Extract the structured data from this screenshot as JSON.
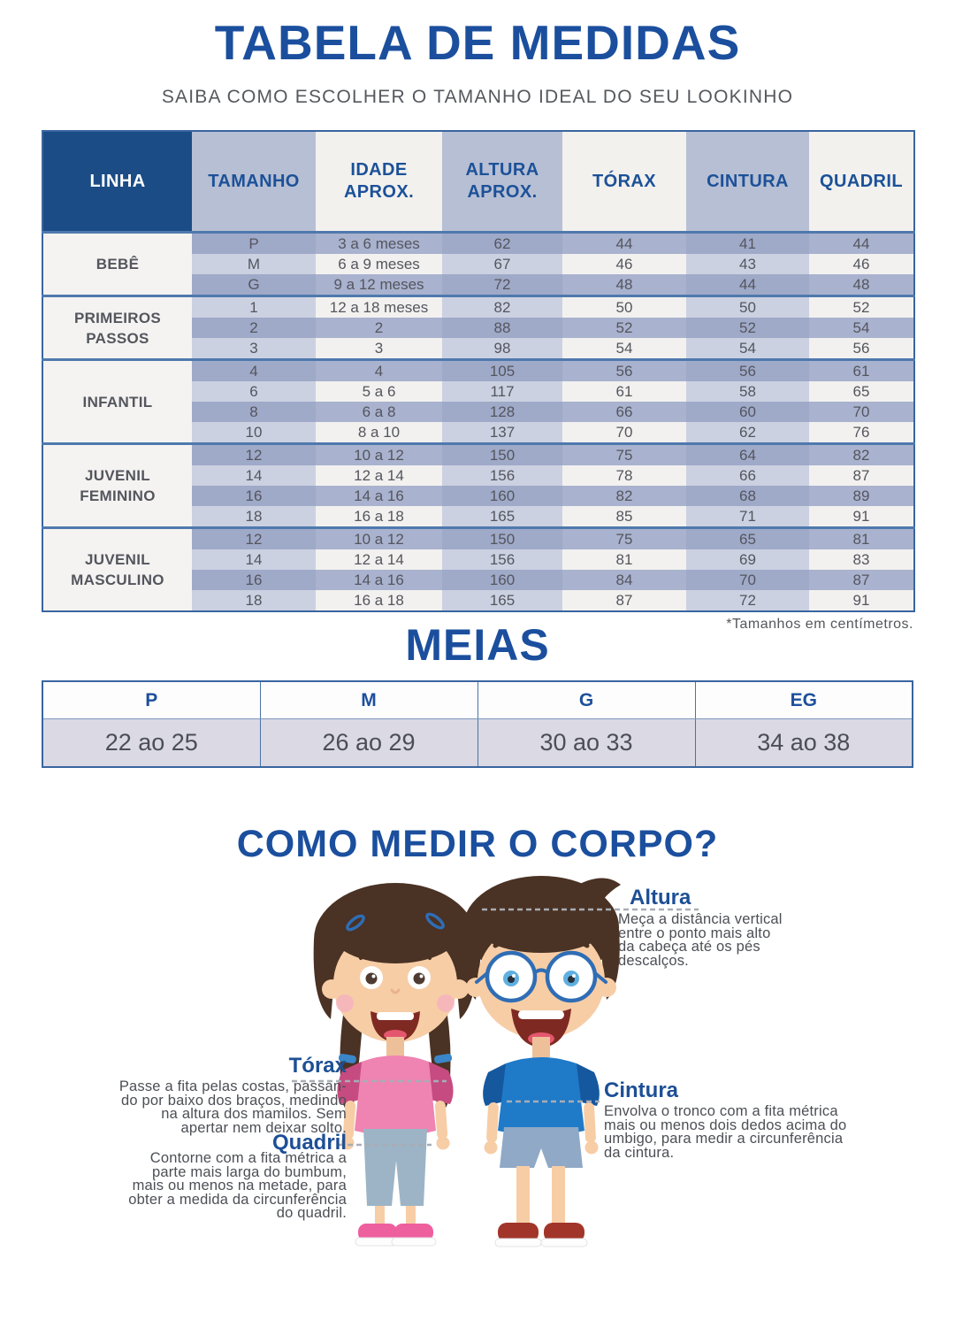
{
  "page": {
    "title": "TABELA DE MEDIDAS",
    "subtitle": "SAIBA COMO ESCOLHER O TAMANHO IDEAL DO SEU LOOKINHO"
  },
  "colors": {
    "title_blue": "#1b4f9e",
    "header_navy": "#1b4c85",
    "header_text_blue": "#1c5198",
    "row_dark": "#a9b2ce",
    "row_light": "#f2f1ef",
    "girl_shirt_pink": "#ef83b2",
    "boy_shirt_blue": "#1f7ac8"
  },
  "size_table": {
    "headers": [
      "LINHA",
      "TAMANHO",
      "IDADE\nAPROX.",
      "ALTURA\nAPROX.",
      "TÓRAX",
      "CINTURA",
      "QUADRIL"
    ],
    "groups": [
      {
        "linha": "BEBÊ",
        "rows": [
          [
            "P",
            "3 a 6 meses",
            "62",
            "44",
            "41",
            "44"
          ],
          [
            "M",
            "6 a 9 meses",
            "67",
            "46",
            "43",
            "46"
          ],
          [
            "G",
            "9 a 12 meses",
            "72",
            "48",
            "44",
            "48"
          ]
        ]
      },
      {
        "linha": "PRIMEIROS\nPASSOS",
        "rows": [
          [
            "1",
            "12 a 18 meses",
            "82",
            "50",
            "50",
            "52"
          ],
          [
            "2",
            "2",
            "88",
            "52",
            "52",
            "54"
          ],
          [
            "3",
            "3",
            "98",
            "54",
            "54",
            "56"
          ]
        ]
      },
      {
        "linha": "INFANTIL",
        "rows": [
          [
            "4",
            "4",
            "105",
            "56",
            "56",
            "61"
          ],
          [
            "6",
            "5 a 6",
            "117",
            "61",
            "58",
            "65"
          ],
          [
            "8",
            "6 a 8",
            "128",
            "66",
            "60",
            "70"
          ],
          [
            "10",
            "8 a 10",
            "137",
            "70",
            "62",
            "76"
          ]
        ]
      },
      {
        "linha": "JUVENIL\nFEMININO",
        "rows": [
          [
            "12",
            "10 a 12",
            "150",
            "75",
            "64",
            "82"
          ],
          [
            "14",
            "12 a 14",
            "156",
            "78",
            "66",
            "87"
          ],
          [
            "16",
            "14 a 16",
            "160",
            "82",
            "68",
            "89"
          ],
          [
            "18",
            "16 a 18",
            "165",
            "85",
            "71",
            "91"
          ]
        ]
      },
      {
        "linha": "JUVENIL\nMASCULINO",
        "rows": [
          [
            "12",
            "10 a 12",
            "150",
            "75",
            "65",
            "81"
          ],
          [
            "14",
            "12 a 14",
            "156",
            "81",
            "69",
            "83"
          ],
          [
            "16",
            "14 a 16",
            "160",
            "84",
            "70",
            "87"
          ],
          [
            "18",
            "16 a 18",
            "165",
            "87",
            "72",
            "91"
          ]
        ]
      }
    ],
    "footnote": "*Tamanhos em centímetros."
  },
  "meias": {
    "title": "MEIAS",
    "headers": [
      "P",
      "M",
      "G",
      "EG"
    ],
    "values": [
      "22 ao 25",
      "26 ao 29",
      "30 ao 33",
      "34 ao 38"
    ]
  },
  "measure": {
    "title": "COMO MEDIR O CORPO?",
    "altura": {
      "label": "Altura",
      "text": "Meça a distância vertical\nentre o ponto mais alto\nda cabeça até os pés\ndescalços."
    },
    "torax": {
      "label": "Tórax",
      "text": "Passe a fita pelas costas, passan-\ndo por baixo dos braços, medindo\nna altura dos mamilos. Sem\napertar nem deixar solto."
    },
    "quadril": {
      "label": "Quadril",
      "text": "Contorne com a fita métrica a\nparte mais larga do bumbum,\nmais ou menos na metade, para\nobter a medida da circunferência\ndo quadril."
    },
    "cintura": {
      "label": "Cintura",
      "text": "Envolva o tronco com a fita métrica\nmais ou menos dois dedos acima do\numbigo, para medir a  circunferência\nda cintura."
    }
  }
}
